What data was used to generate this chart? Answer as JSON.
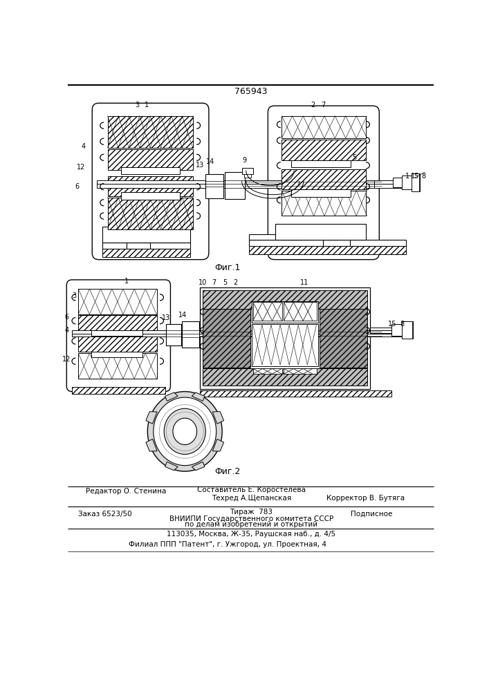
{
  "patent_number": "765943",
  "fig1_caption": "Фиг.1",
  "fig2_caption": "Фиг.2",
  "footer_editor": "Редактор О. Стенина",
  "footer_composer": "Составитель Е. Коростелева",
  "footer_techred": "Техред А.Щепанская",
  "footer_corrector": "Корректор В. Бутяга",
  "footer_order": "Заказ 6523/50",
  "footer_tirazh": "Тираж  783",
  "footer_podpisnoe": "Подписное",
  "footer_vniiipi": "ВНИИПИ Государственного комитета СССР",
  "footer_po_delam": "по делам изобретений и открытий",
  "footer_address": "113035, Москва, Ж-35, Раушская наб., д. 4/5",
  "footer_filial": "Филиал ППП \"Патент\", г. Ужгород, ул. Проектная, 4",
  "bg_color": "#ffffff"
}
